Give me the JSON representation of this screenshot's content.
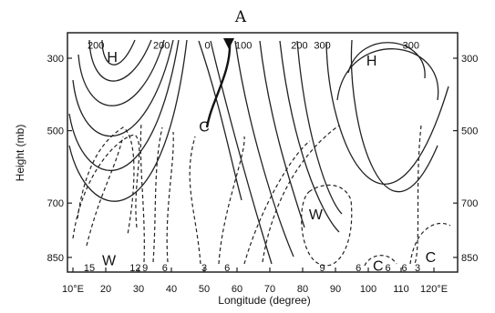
{
  "chart_data": {
    "type": "contour",
    "panel_label": "A",
    "xlabel": "Longitude (degree)",
    "ylabel": "Height (mb)",
    "x_ticks": [
      "10°E",
      "20",
      "30",
      "40",
      "50",
      "60",
      "70",
      "80",
      "90",
      "100",
      "110",
      "120°E"
    ],
    "y_ticks_left": [
      "300",
      "500",
      "700",
      "850"
    ],
    "y_ticks_right": [
      "300",
      "500",
      "700",
      "850"
    ],
    "xlim": [
      10,
      120
    ],
    "ylim": [
      250,
      890
    ],
    "y_scale": "pressure (inverted)",
    "solid_contour_labels": [
      {
        "text": "200",
        "lon": 17,
        "p": 263
      },
      {
        "text": "200",
        "lon": 37,
        "p": 263
      },
      {
        "text": "0",
        "lon": 51,
        "p": 263
      },
      {
        "text": "100",
        "lon": 62,
        "p": 263
      },
      {
        "text": "200",
        "lon": 79,
        "p": 263
      },
      {
        "text": "300",
        "lon": 86,
        "p": 263
      },
      {
        "text": "300",
        "lon": 113,
        "p": 263
      }
    ],
    "dashed_contour_labels": [
      {
        "text": "15",
        "lon": 15,
        "p": 878
      },
      {
        "text": "12",
        "lon": 29,
        "p": 878
      },
      {
        "text": "9",
        "lon": 32,
        "p": 878
      },
      {
        "text": "6",
        "lon": 38,
        "p": 878
      },
      {
        "text": "3",
        "lon": 50,
        "p": 878
      },
      {
        "text": "6",
        "lon": 57,
        "p": 878
      },
      {
        "text": "9",
        "lon": 86,
        "p": 878
      },
      {
        "text": "6",
        "lon": 97,
        "p": 878
      },
      {
        "text": "6",
        "lon": 106,
        "p": 878
      },
      {
        "text": "6",
        "lon": 111,
        "p": 878
      },
      {
        "text": "3",
        "lon": 115,
        "p": 878
      }
    ],
    "centers": [
      {
        "text": "H",
        "lon": 22,
        "p": 295
      },
      {
        "text": "C",
        "lon": 50,
        "p": 487
      },
      {
        "text": "W",
        "lon": 84,
        "p": 730
      },
      {
        "text": "H",
        "lon": 101,
        "p": 305
      },
      {
        "text": "W",
        "lon": 21,
        "p": 856
      },
      {
        "text": "C",
        "lon": 103,
        "p": 872
      },
      {
        "text": "C",
        "lon": 119,
        "p": 848
      }
    ],
    "grid": false,
    "legend": "none"
  }
}
